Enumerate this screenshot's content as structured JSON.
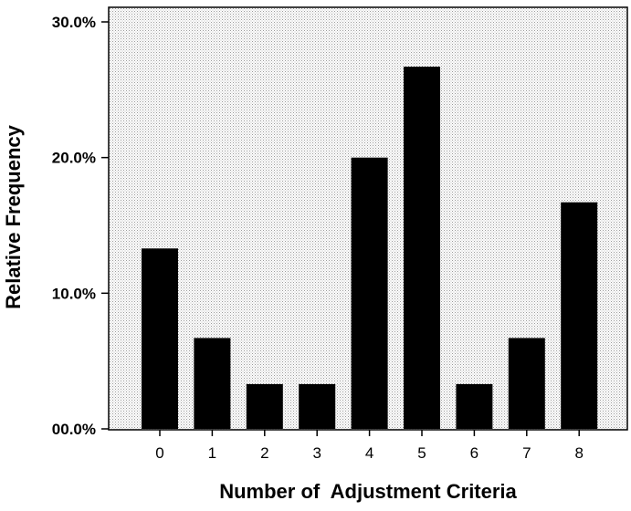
{
  "chart_data": {
    "type": "bar",
    "title": "",
    "xlabel": "Number of  Adjustment Criteria",
    "ylabel": "Relative Frequency",
    "categories": [
      "0",
      "1",
      "2",
      "3",
      "4",
      "5",
      "6",
      "7",
      "8"
    ],
    "values": [
      13.3,
      6.7,
      3.3,
      3.3,
      20.0,
      26.7,
      3.3,
      6.7,
      16.7
    ],
    "ylim": [
      0,
      30
    ],
    "yticks": [
      0,
      10,
      20,
      30
    ],
    "ytick_labels": [
      "00.0%",
      "10.0%",
      "20.0%",
      "30.0%"
    ],
    "bar_color": "#000000",
    "plot_background": "dotted light gray",
    "grid": false,
    "legend": "none"
  }
}
